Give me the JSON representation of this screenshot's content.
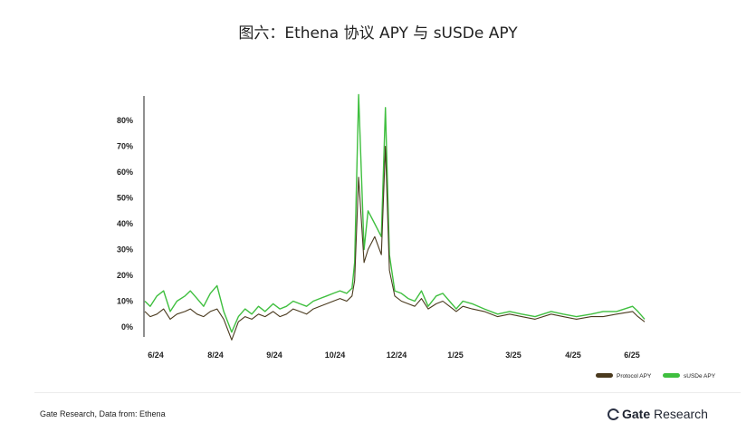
{
  "chart_data": {
    "type": "line",
    "title": "图六：Ethena 协议 APY 与 sUSDe APY",
    "x_tick_labels": [
      "6/24",
      "8/24",
      "9/24",
      "10/24",
      "12/24",
      "1/25",
      "3/25",
      "4/25",
      "6/25"
    ],
    "y_tick_labels": [
      "0%",
      "10%",
      "20%",
      "30%",
      "40%",
      "50%",
      "60%",
      "70%",
      "80%"
    ],
    "ylim": [
      0,
      90
    ],
    "grid": false,
    "legend_position": "bottom-right",
    "x_points": [
      "2024-06-01",
      "2024-06-05",
      "2024-06-10",
      "2024-06-15",
      "2024-06-20",
      "2024-06-25",
      "2024-07-01",
      "2024-07-05",
      "2024-07-10",
      "2024-07-15",
      "2024-07-20",
      "2024-07-25",
      "2024-07-30",
      "2024-08-05",
      "2024-08-10",
      "2024-08-15",
      "2024-08-20",
      "2024-08-25",
      "2024-08-30",
      "2024-09-05",
      "2024-09-10",
      "2024-09-15",
      "2024-09-20",
      "2024-09-25",
      "2024-09-30",
      "2024-10-05",
      "2024-10-10",
      "2024-10-15",
      "2024-10-20",
      "2024-10-25",
      "2024-10-30",
      "2024-11-03",
      "2024-11-05",
      "2024-11-08",
      "2024-11-12",
      "2024-11-15",
      "2024-11-20",
      "2024-11-25",
      "2024-11-28",
      "2024-12-01",
      "2024-12-05",
      "2024-12-10",
      "2024-12-15",
      "2024-12-20",
      "2024-12-25",
      "2024-12-30",
      "2025-01-05",
      "2025-01-10",
      "2025-01-15",
      "2025-01-20",
      "2025-01-25",
      "2025-02-01",
      "2025-02-10",
      "2025-02-20",
      "2025-03-01",
      "2025-03-10",
      "2025-03-20",
      "2025-04-01",
      "2025-04-10",
      "2025-04-20",
      "2025-05-01",
      "2025-05-10",
      "2025-05-20",
      "2025-06-01",
      "2025-06-05",
      "2025-06-10"
    ],
    "series": [
      {
        "name": "Protocol APY",
        "color": "#4a3a1e",
        "values": [
          6,
          4,
          5,
          7,
          3,
          5,
          6,
          7,
          5,
          4,
          6,
          7,
          3,
          -5,
          2,
          4,
          3,
          5,
          4,
          6,
          4,
          5,
          7,
          6,
          5,
          7,
          8,
          9,
          10,
          11,
          10,
          12,
          18,
          58,
          25,
          30,
          35,
          28,
          70,
          22,
          12,
          10,
          9,
          8,
          11,
          7,
          9,
          10,
          8,
          6,
          8,
          7,
          6,
          4,
          5,
          4,
          3,
          5,
          4,
          3,
          4,
          4,
          5,
          6,
          4,
          2
        ]
      },
      {
        "name": "sUSDe APY",
        "color": "#3fbf3f",
        "values": [
          10,
          8,
          12,
          14,
          6,
          10,
          12,
          14,
          11,
          8,
          13,
          16,
          6,
          -2,
          4,
          7,
          5,
          8,
          6,
          9,
          7,
          8,
          10,
          9,
          8,
          10,
          11,
          12,
          13,
          14,
          13,
          15,
          25,
          90,
          30,
          45,
          40,
          35,
          85,
          28,
          14,
          13,
          11,
          10,
          14,
          8,
          12,
          13,
          10,
          7,
          10,
          9,
          7,
          5,
          6,
          5,
          4,
          6,
          5,
          4,
          5,
          6,
          6,
          8,
          6,
          3
        ]
      }
    ]
  },
  "footer": {
    "source": "Gate Research, Data from: Ethena",
    "brand_bold": "Gate",
    "brand_rest": " Research"
  }
}
